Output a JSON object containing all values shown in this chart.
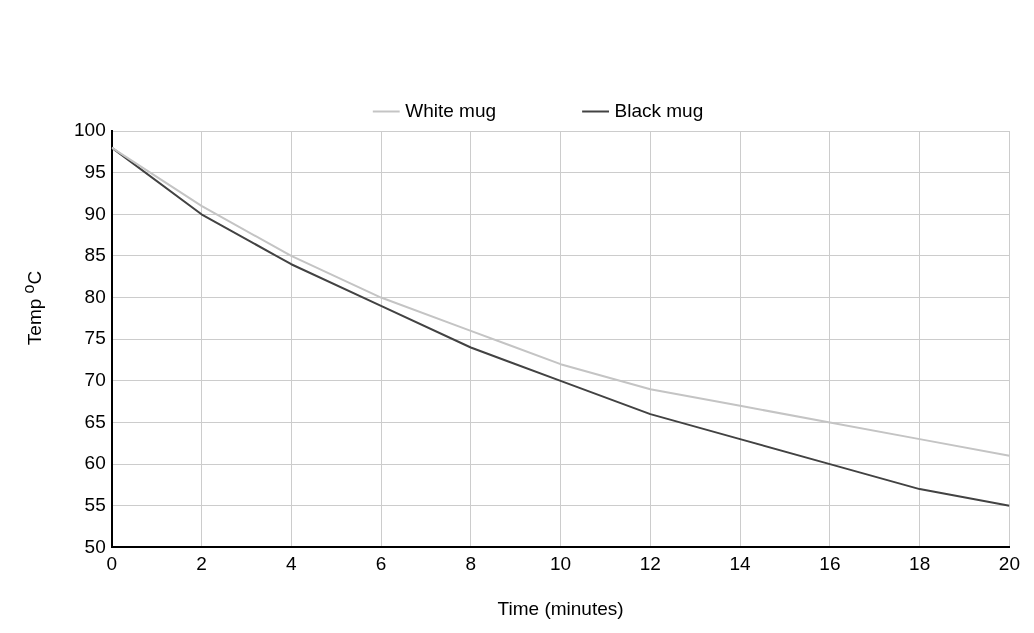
{
  "chart_data": {
    "type": "line",
    "xlabel": "Time (minutes)",
    "ylabel": "Temp $^{o}$C",
    "legend": "top",
    "grid": true,
    "marker": "none",
    "line_style": "solid",
    "x": [
      0,
      2,
      4,
      6,
      8,
      10,
      12,
      14,
      16,
      18,
      20
    ],
    "xlim": [
      0,
      20
    ],
    "xticks": [
      0,
      2,
      4,
      6,
      8,
      10,
      12,
      14,
      16,
      18,
      20
    ],
    "ylim": [
      50,
      100
    ],
    "yticks": [
      50,
      55,
      60,
      65,
      70,
      75,
      80,
      85,
      90,
      95,
      100
    ],
    "series": [
      {
        "name": "White mug",
        "color": "#c4c4c4",
        "values": [
          98,
          91,
          85,
          80,
          76,
          72,
          69,
          67,
          65,
          63,
          61
        ]
      },
      {
        "name": "Black mug",
        "color": "#424242",
        "values": [
          98,
          90,
          84,
          79,
          74,
          70,
          66,
          63,
          60,
          57,
          55
        ]
      }
    ]
  }
}
